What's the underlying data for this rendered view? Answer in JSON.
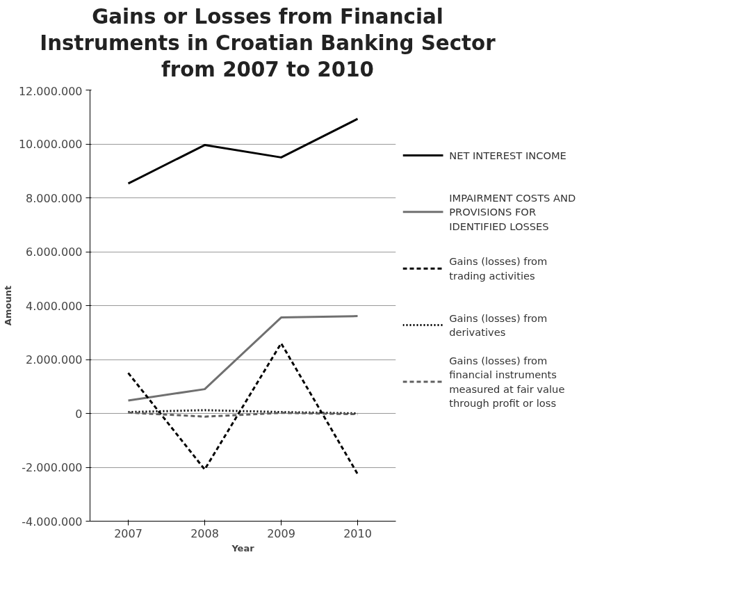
{
  "chart_data": {
    "type": "line",
    "title": "Gains or Losses from Financial Instruments in Croatian Banking Sector from 2007 to 2010",
    "xlabel": "Year",
    "ylabel": "Amount",
    "categories": [
      "2007",
      "2008",
      "2009",
      "2010"
    ],
    "series": [
      {
        "name": "NET INTEREST INCOME",
        "color": "#000000",
        "line_style": "solid",
        "values": [
          8530000,
          9960000,
          9500000,
          10930000
        ]
      },
      {
        "name": "IMPAIRMENT COSTS AND PROVISIONS FOR IDENTIFIED LOSSES",
        "color": "#707070",
        "line_style": "solid",
        "values": [
          480000,
          900000,
          3560000,
          3610000
        ]
      },
      {
        "name": "Gains (losses) from trading activities",
        "color": "#000000",
        "line_style": "dashed",
        "values": [
          1500000,
          -2080000,
          2600000,
          -2250000
        ]
      },
      {
        "name": "Gains (losses) from derivatives",
        "color": "#000000",
        "line_style": "dotted",
        "values": [
          50000,
          120000,
          50000,
          0
        ]
      },
      {
        "name": "Gains (losses) from financial instruments measured at fair value through profit or loss",
        "color": "#606060",
        "line_style": "dashed",
        "values": [
          30000,
          -120000,
          20000,
          -30000
        ]
      }
    ],
    "ylim": [
      -4000000,
      12000000
    ],
    "yticks": [
      {
        "value": -4000000,
        "label": "-4.000.000"
      },
      {
        "value": -2000000,
        "label": "-2.000.000"
      },
      0,
      {
        "value": 2000000,
        "label": "2.000.000"
      },
      {
        "value": 4000000,
        "label": "4.000.000"
      },
      {
        "value": 6000000,
        "label": "6.000.000"
      },
      {
        "value": 8000000,
        "label": "8.000.000"
      },
      {
        "value": 10000000,
        "label": "10.000.000"
      },
      {
        "value": 12000000,
        "label": "12.000.000"
      }
    ],
    "grid": "y",
    "legend": "right"
  }
}
